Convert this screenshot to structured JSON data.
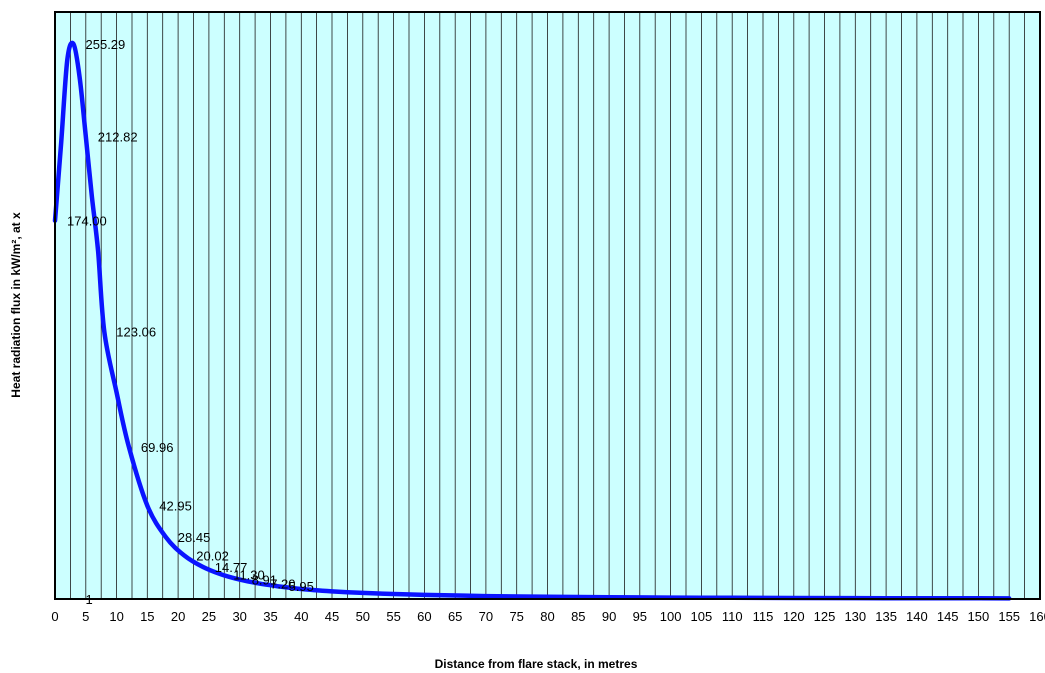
{
  "chart_data": {
    "type": "line",
    "title": "",
    "xlabel": "Distance from flare stack, in metres",
    "ylabel": "Heat radiation flux in kW/m², at x",
    "xlim": [
      0,
      160
    ],
    "ylim": [
      0,
      270
    ],
    "x_ticks": [
      0,
      5,
      10,
      15,
      20,
      25,
      30,
      35,
      40,
      45,
      50,
      55,
      60,
      65,
      70,
      75,
      80,
      85,
      90,
      95,
      100,
      105,
      110,
      115,
      120,
      125,
      130,
      135,
      140,
      145,
      150,
      155,
      160
    ],
    "vertical_grid_step": 2.5,
    "y_ticks_shown": false,
    "plot_background": "#ccffff",
    "line_color": "#0a14ff",
    "series": [
      {
        "x": [
          0,
          1,
          2,
          3,
          4,
          5,
          6,
          7,
          8,
          10,
          12,
          15,
          18,
          21,
          24,
          27,
          30,
          33,
          36,
          40,
          45,
          50,
          55,
          60,
          70,
          80,
          90,
          100,
          110,
          120,
          130,
          140,
          150,
          155
        ],
        "values": [
          174.0,
          210.0,
          248.0,
          255.29,
          240.0,
          212.82,
          185.0,
          160.0,
          123.06,
          95.0,
          69.96,
          42.95,
          28.45,
          20.02,
          14.77,
          11.3,
          8.91,
          7.2,
          5.95,
          4.6,
          3.5,
          2.8,
          2.3,
          1.9,
          1.35,
          1.0,
          0.8,
          0.65,
          0.55,
          0.45,
          0.4,
          0.35,
          0.3,
          0.28
        ]
      }
    ],
    "data_labels": [
      {
        "x": 3,
        "text": "255.29"
      },
      {
        "x": 5,
        "text": "212.82"
      },
      {
        "x": 0,
        "text": "174.00"
      },
      {
        "x": 8,
        "text": "123.06"
      },
      {
        "x": 12,
        "text": "69.96"
      },
      {
        "x": 15,
        "text": "42.95"
      },
      {
        "x": 18,
        "text": "28.45"
      },
      {
        "x": 21,
        "text": "20.02"
      },
      {
        "x": 24,
        "text": "14.77"
      },
      {
        "x": 27,
        "text": "11.30"
      },
      {
        "x": 30,
        "text": "8.91"
      },
      {
        "x": 33,
        "text": "7.20"
      },
      {
        "x": 36,
        "text": "5.95"
      },
      {
        "x": 3,
        "text": "1"
      }
    ]
  }
}
